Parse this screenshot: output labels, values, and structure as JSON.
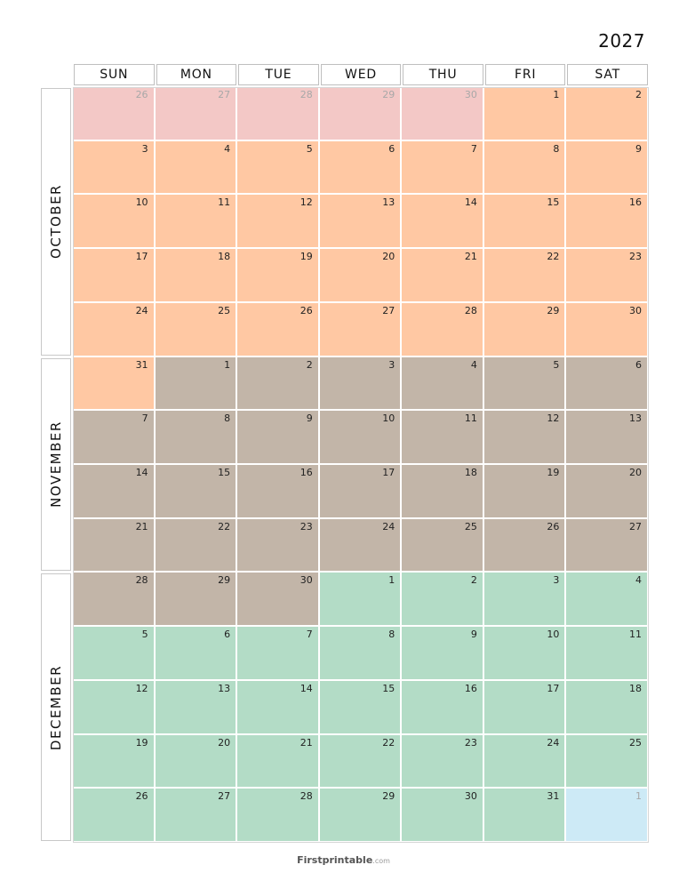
{
  "year": "2027",
  "weekdays": [
    "SUN",
    "MON",
    "TUE",
    "WED",
    "THU",
    "FRI",
    "SAT"
  ],
  "months": [
    {
      "name": "OCTOBER",
      "weeks": 5
    },
    {
      "name": "NOVEMBER",
      "weeks": 4
    },
    {
      "name": "DECEMBER",
      "weeks": 5
    }
  ],
  "colors": {
    "prev": "#f3c8c6",
    "oct": "#ffc8a3",
    "nov": "#c2b5a8",
    "dec": "#b3dcc6",
    "next": "#cdeaf6"
  },
  "rows": [
    [
      {
        "d": "26",
        "m": "prev"
      },
      {
        "d": "27",
        "m": "prev"
      },
      {
        "d": "28",
        "m": "prev"
      },
      {
        "d": "29",
        "m": "prev"
      },
      {
        "d": "30",
        "m": "prev"
      },
      {
        "d": "1",
        "m": "oct"
      },
      {
        "d": "2",
        "m": "oct"
      }
    ],
    [
      {
        "d": "3",
        "m": "oct"
      },
      {
        "d": "4",
        "m": "oct"
      },
      {
        "d": "5",
        "m": "oct"
      },
      {
        "d": "6",
        "m": "oct"
      },
      {
        "d": "7",
        "m": "oct"
      },
      {
        "d": "8",
        "m": "oct"
      },
      {
        "d": "9",
        "m": "oct"
      }
    ],
    [
      {
        "d": "10",
        "m": "oct"
      },
      {
        "d": "11",
        "m": "oct"
      },
      {
        "d": "12",
        "m": "oct"
      },
      {
        "d": "13",
        "m": "oct"
      },
      {
        "d": "14",
        "m": "oct"
      },
      {
        "d": "15",
        "m": "oct"
      },
      {
        "d": "16",
        "m": "oct"
      }
    ],
    [
      {
        "d": "17",
        "m": "oct"
      },
      {
        "d": "18",
        "m": "oct"
      },
      {
        "d": "19",
        "m": "oct"
      },
      {
        "d": "20",
        "m": "oct"
      },
      {
        "d": "21",
        "m": "oct"
      },
      {
        "d": "22",
        "m": "oct"
      },
      {
        "d": "23",
        "m": "oct"
      }
    ],
    [
      {
        "d": "24",
        "m": "oct"
      },
      {
        "d": "25",
        "m": "oct"
      },
      {
        "d": "26",
        "m": "oct"
      },
      {
        "d": "27",
        "m": "oct"
      },
      {
        "d": "28",
        "m": "oct"
      },
      {
        "d": "29",
        "m": "oct"
      },
      {
        "d": "30",
        "m": "oct"
      }
    ],
    [
      {
        "d": "31",
        "m": "oct"
      },
      {
        "d": "1",
        "m": "nov"
      },
      {
        "d": "2",
        "m": "nov"
      },
      {
        "d": "3",
        "m": "nov"
      },
      {
        "d": "4",
        "m": "nov"
      },
      {
        "d": "5",
        "m": "nov"
      },
      {
        "d": "6",
        "m": "nov"
      }
    ],
    [
      {
        "d": "7",
        "m": "nov"
      },
      {
        "d": "8",
        "m": "nov"
      },
      {
        "d": "9",
        "m": "nov"
      },
      {
        "d": "10",
        "m": "nov"
      },
      {
        "d": "11",
        "m": "nov"
      },
      {
        "d": "12",
        "m": "nov"
      },
      {
        "d": "13",
        "m": "nov"
      }
    ],
    [
      {
        "d": "14",
        "m": "nov"
      },
      {
        "d": "15",
        "m": "nov"
      },
      {
        "d": "16",
        "m": "nov"
      },
      {
        "d": "17",
        "m": "nov"
      },
      {
        "d": "18",
        "m": "nov"
      },
      {
        "d": "19",
        "m": "nov"
      },
      {
        "d": "20",
        "m": "nov"
      }
    ],
    [
      {
        "d": "21",
        "m": "nov"
      },
      {
        "d": "22",
        "m": "nov"
      },
      {
        "d": "23",
        "m": "nov"
      },
      {
        "d": "24",
        "m": "nov"
      },
      {
        "d": "25",
        "m": "nov"
      },
      {
        "d": "26",
        "m": "nov"
      },
      {
        "d": "27",
        "m": "nov"
      }
    ],
    [
      {
        "d": "28",
        "m": "nov"
      },
      {
        "d": "29",
        "m": "nov"
      },
      {
        "d": "30",
        "m": "nov"
      },
      {
        "d": "1",
        "m": "dec"
      },
      {
        "d": "2",
        "m": "dec"
      },
      {
        "d": "3",
        "m": "dec"
      },
      {
        "d": "4",
        "m": "dec"
      }
    ],
    [
      {
        "d": "5",
        "m": "dec"
      },
      {
        "d": "6",
        "m": "dec"
      },
      {
        "d": "7",
        "m": "dec"
      },
      {
        "d": "8",
        "m": "dec"
      },
      {
        "d": "9",
        "m": "dec"
      },
      {
        "d": "10",
        "m": "dec"
      },
      {
        "d": "11",
        "m": "dec"
      }
    ],
    [
      {
        "d": "12",
        "m": "dec"
      },
      {
        "d": "13",
        "m": "dec"
      },
      {
        "d": "14",
        "m": "dec"
      },
      {
        "d": "15",
        "m": "dec"
      },
      {
        "d": "16",
        "m": "dec"
      },
      {
        "d": "17",
        "m": "dec"
      },
      {
        "d": "18",
        "m": "dec"
      }
    ],
    [
      {
        "d": "19",
        "m": "dec"
      },
      {
        "d": "20",
        "m": "dec"
      },
      {
        "d": "21",
        "m": "dec"
      },
      {
        "d": "22",
        "m": "dec"
      },
      {
        "d": "23",
        "m": "dec"
      },
      {
        "d": "24",
        "m": "dec"
      },
      {
        "d": "25",
        "m": "dec"
      }
    ],
    [
      {
        "d": "26",
        "m": "dec"
      },
      {
        "d": "27",
        "m": "dec"
      },
      {
        "d": "28",
        "m": "dec"
      },
      {
        "d": "29",
        "m": "dec"
      },
      {
        "d": "30",
        "m": "dec"
      },
      {
        "d": "31",
        "m": "dec"
      },
      {
        "d": "1",
        "m": "next"
      }
    ]
  ],
  "footer": {
    "brand": "Firstprintable",
    "suffix": ".com"
  }
}
